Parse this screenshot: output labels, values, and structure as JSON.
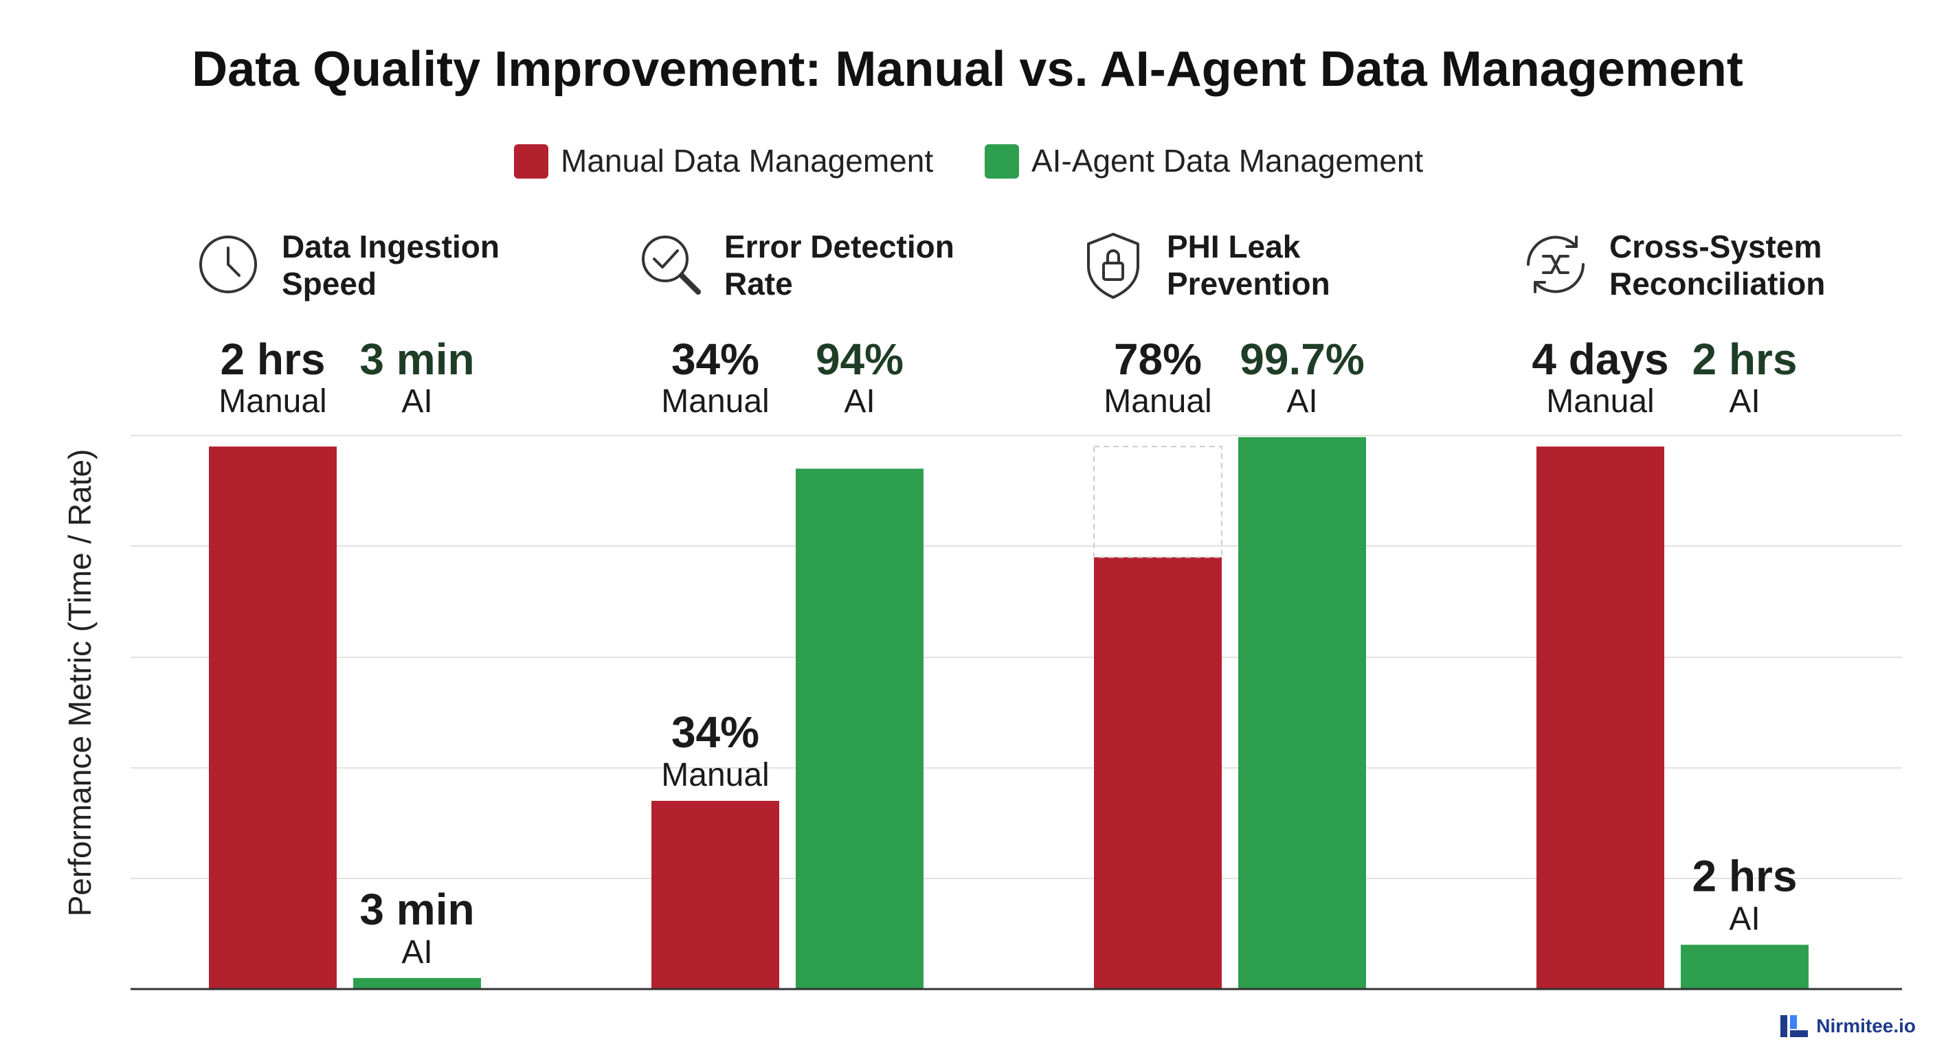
{
  "chart_data": {
    "type": "bar",
    "title": "Data Quality Improvement: Manual vs. AI-Agent Data Management",
    "ylabel": "Performance Metric (Time / Rate)",
    "xlabel": "",
    "grid": true,
    "legend_position": "top-center",
    "colors": {
      "manual": "#b3202e",
      "ai": "#2e9e4f",
      "gridline": "#e2e2e2",
      "axis": "#333333"
    },
    "series": [
      {
        "name": "Manual Data Management",
        "key": "manual"
      },
      {
        "name": "AI-Agent Data Management",
        "key": "ai"
      }
    ],
    "groups": [
      {
        "title_lines": [
          "Data Ingestion",
          "Speed"
        ],
        "icon": "clock-icon",
        "manual": {
          "value": "2 hrs",
          "label": "Manual",
          "level": 0.98
        },
        "ai": {
          "value": "3 min",
          "label": "AI",
          "level": 0.02
        },
        "bar_callout": "ai"
      },
      {
        "title_lines": [
          "Error Detection",
          "Rate"
        ],
        "icon": "magnifier-check-icon",
        "manual": {
          "value": "34%",
          "label": "Manual",
          "level": 0.34
        },
        "ai": {
          "value": "94%",
          "label": "AI",
          "level": 0.94
        },
        "bar_callout": "manual"
      },
      {
        "title_lines": [
          "PHI Leak",
          "Prevention"
        ],
        "icon": "shield-lock-icon",
        "manual": {
          "value": "78%",
          "label": "Manual",
          "level": 0.78
        },
        "ai": {
          "value": "99.7%",
          "label": "AI",
          "level": 0.997
        },
        "bar_callout": "none"
      },
      {
        "title_lines": [
          "Cross-System",
          "Reconciliation"
        ],
        "icon": "shuffle-sync-icon",
        "manual": {
          "value": "4 days",
          "label": "Manual",
          "level": 0.98
        },
        "ai": {
          "value": "2 hrs",
          "label": "AI",
          "level": 0.08
        },
        "bar_callout": "ai"
      }
    ]
  },
  "brand": {
    "name": "Nirmitee.io",
    "color": "#1e3a8a"
  }
}
